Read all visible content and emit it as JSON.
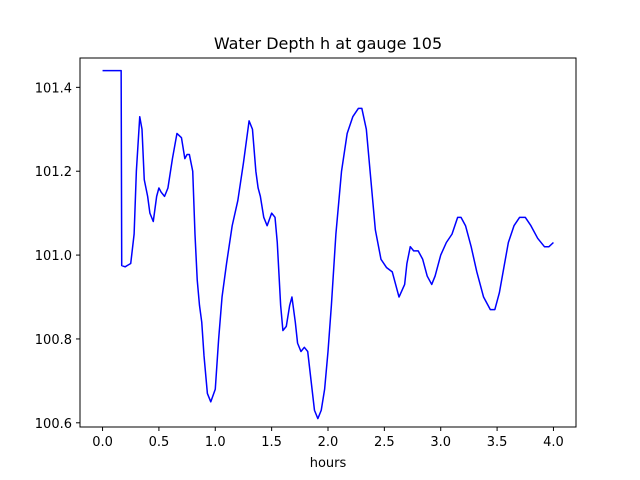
{
  "chart_data": {
    "type": "line",
    "title": "Water Depth h at gauge 105",
    "xlabel": "hours",
    "ylabel": "",
    "xlim": [
      -0.2,
      4.2
    ],
    "ylim": [
      100.59,
      101.47
    ],
    "x_ticks": [
      0.0,
      0.5,
      1.0,
      1.5,
      2.0,
      2.5,
      3.0,
      3.5,
      4.0
    ],
    "x_tick_labels": [
      "0.0",
      "0.5",
      "1.0",
      "1.5",
      "2.0",
      "2.5",
      "3.0",
      "3.5",
      "4.0"
    ],
    "y_ticks": [
      100.6,
      100.8,
      101.0,
      101.2,
      101.4
    ],
    "y_tick_labels": [
      "100.6",
      "100.8",
      "101.0",
      "101.2",
      "101.4"
    ],
    "grid": false,
    "legend": "none",
    "series": [
      {
        "color": "#0000ff",
        "x": [
          0.0,
          0.16,
          0.165,
          0.17,
          0.2,
          0.25,
          0.28,
          0.3,
          0.33,
          0.35,
          0.37,
          0.4,
          0.42,
          0.45,
          0.48,
          0.5,
          0.52,
          0.55,
          0.58,
          0.62,
          0.66,
          0.7,
          0.73,
          0.75,
          0.77,
          0.8,
          0.82,
          0.84,
          0.86,
          0.88,
          0.9,
          0.93,
          0.96,
          1.0,
          1.03,
          1.06,
          1.1,
          1.15,
          1.2,
          1.25,
          1.3,
          1.33,
          1.36,
          1.38,
          1.4,
          1.43,
          1.46,
          1.5,
          1.53,
          1.55,
          1.58,
          1.6,
          1.63,
          1.66,
          1.68,
          1.71,
          1.73,
          1.76,
          1.79,
          1.82,
          1.85,
          1.88,
          1.91,
          1.94,
          1.97,
          2.0,
          2.03,
          2.07,
          2.12,
          2.17,
          2.22,
          2.27,
          2.3,
          2.34,
          2.38,
          2.42,
          2.47,
          2.52,
          2.57,
          2.63,
          2.68,
          2.7,
          2.73,
          2.76,
          2.8,
          2.84,
          2.88,
          2.92,
          2.95,
          3.0,
          3.05,
          3.1,
          3.15,
          3.18,
          3.22,
          3.27,
          3.32,
          3.38,
          3.44,
          3.48,
          3.52,
          3.56,
          3.6,
          3.65,
          3.7,
          3.75,
          3.8,
          3.86,
          3.92,
          3.96,
          4.0
        ],
        "y": [
          101.44,
          101.44,
          101.44,
          100.975,
          100.972,
          100.98,
          101.05,
          101.2,
          101.33,
          101.3,
          101.18,
          101.14,
          101.1,
          101.08,
          101.14,
          101.16,
          101.15,
          101.14,
          101.16,
          101.23,
          101.29,
          101.28,
          101.23,
          101.24,
          101.24,
          101.2,
          101.05,
          100.94,
          100.88,
          100.84,
          100.76,
          100.67,
          100.65,
          100.68,
          100.8,
          100.9,
          100.98,
          101.07,
          101.13,
          101.22,
          101.32,
          101.3,
          101.2,
          101.16,
          101.14,
          101.09,
          101.07,
          101.1,
          101.09,
          101.03,
          100.88,
          100.82,
          100.83,
          100.88,
          100.9,
          100.84,
          100.79,
          100.77,
          100.78,
          100.77,
          100.7,
          100.63,
          100.61,
          100.63,
          100.68,
          100.77,
          100.88,
          101.05,
          101.2,
          101.29,
          101.33,
          101.35,
          101.35,
          101.3,
          101.18,
          101.06,
          100.99,
          100.97,
          100.96,
          100.9,
          100.93,
          100.98,
          101.02,
          101.01,
          101.01,
          100.99,
          100.95,
          100.93,
          100.95,
          101.0,
          101.03,
          101.05,
          101.09,
          101.09,
          101.07,
          101.02,
          100.96,
          100.9,
          100.87,
          100.87,
          100.91,
          100.97,
          101.03,
          101.07,
          101.09,
          101.09,
          101.07,
          101.04,
          101.02,
          101.02,
          101.03
        ]
      }
    ]
  }
}
